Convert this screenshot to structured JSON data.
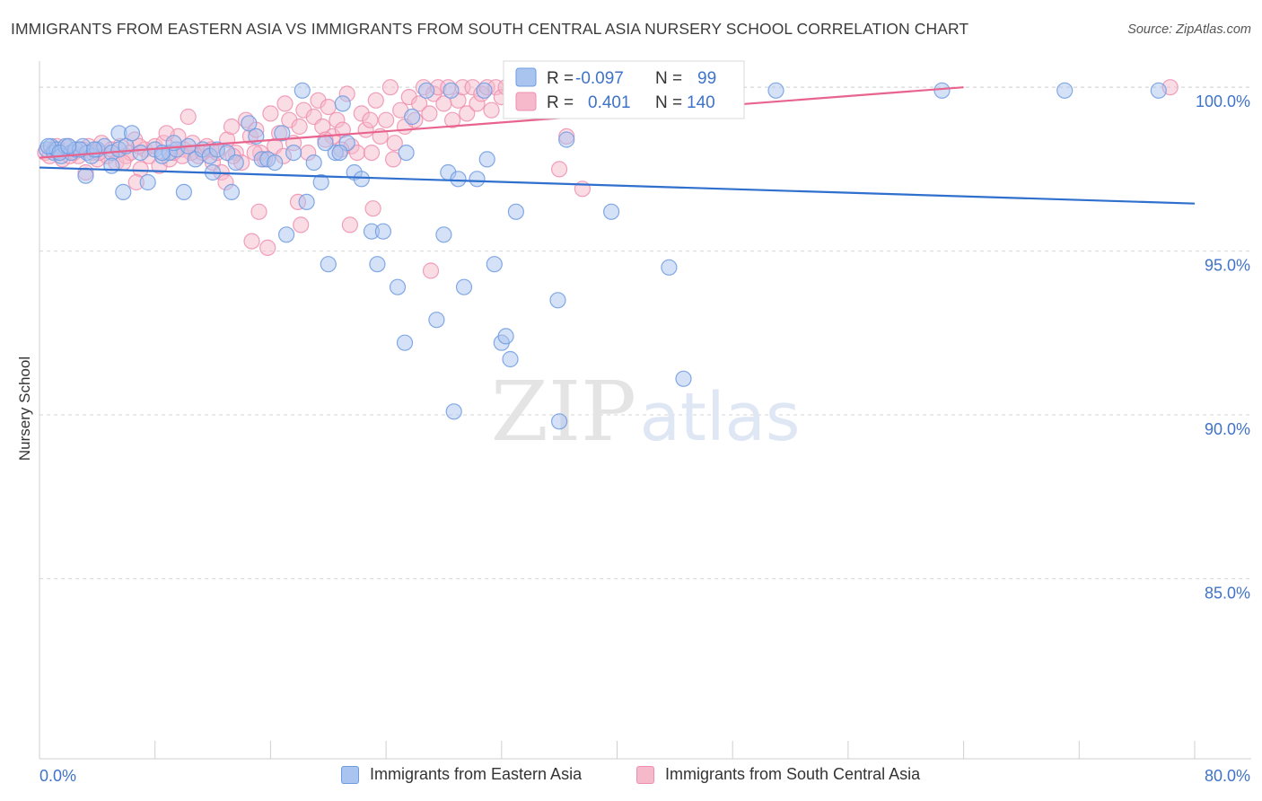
{
  "header": {
    "title": "IMMIGRANTS FROM EASTERN ASIA VS IMMIGRANTS FROM SOUTH CENTRAL ASIA NURSERY SCHOOL CORRELATION CHART",
    "source": "Source: ZipAtlas.com"
  },
  "watermark": {
    "zip": "ZIP",
    "atlas": "atlas"
  },
  "colors": {
    "blue_fill": "#a9c4ef",
    "blue_stroke": "#6f9be0",
    "blue_line": "#2f6fce",
    "pink_fill": "#f6b9cc",
    "pink_stroke": "#ee8faf",
    "pink_line": "#e8648e",
    "tick_text": "#3f73c9",
    "grid": "#d6d6d6"
  },
  "legend": {
    "rows": [
      {
        "r_label": "R =",
        "r_value": "-0.097",
        "n_label": "N =",
        "n_value": "99"
      },
      {
        "r_label": "R =",
        "r_value": "0.401",
        "n_label": "N =",
        "n_value": "140"
      }
    ]
  },
  "chart_data": {
    "type": "scatter",
    "title": "IMMIGRANTS FROM EASTERN ASIA VS IMMIGRANTS FROM SOUTH CENTRAL ASIA NURSERY SCHOOL CORRELATION CHART",
    "xlabel": "",
    "ylabel": "Nursery School",
    "xlim": [
      0,
      80
    ],
    "ylim": [
      79.5,
      100.8
    ],
    "x_tick_labels": [
      "0.0%",
      "80.0%"
    ],
    "y_ticks": [
      85,
      90,
      95,
      100
    ],
    "y_tick_labels": [
      "85.0%",
      "90.0%",
      "95.0%",
      "100.0%"
    ],
    "grid": true,
    "legend_position": "top-center",
    "series": [
      {
        "name": "Immigrants from Eastern Asia",
        "color": "#a9c4ef",
        "r": -0.097,
        "n": 99,
        "trend": {
          "x": [
            0,
            80
          ],
          "y": [
            97.55,
            96.45
          ]
        },
        "points": [
          [
            0.5,
            98.1
          ],
          [
            0.8,
            98.2
          ],
          [
            1.0,
            98.0
          ],
          [
            1.2,
            98.1
          ],
          [
            1.5,
            97.9
          ],
          [
            1.8,
            98.2
          ],
          [
            2.2,
            98.0
          ],
          [
            2.5,
            98.1
          ],
          [
            3.0,
            98.2
          ],
          [
            3.3,
            98.0
          ],
          [
            3.6,
            97.9
          ],
          [
            4.0,
            98.1
          ],
          [
            4.5,
            98.2
          ],
          [
            5.0,
            98.0
          ],
          [
            5.5,
            98.1
          ],
          [
            6.0,
            98.2
          ],
          [
            0.6,
            98.2
          ],
          [
            1.4,
            98.0
          ],
          [
            2.8,
            98.1
          ],
          [
            3.2,
            97.3
          ],
          [
            5.0,
            97.6
          ],
          [
            5.5,
            98.6
          ],
          [
            5.8,
            96.8
          ],
          [
            6.4,
            98.6
          ],
          [
            7.0,
            98.0
          ],
          [
            7.5,
            97.1
          ],
          [
            8.0,
            98.1
          ],
          [
            8.5,
            97.9
          ],
          [
            9.0,
            98.0
          ],
          [
            9.5,
            98.1
          ],
          [
            10.0,
            96.8
          ],
          [
            10.3,
            98.2
          ],
          [
            10.8,
            97.8
          ],
          [
            11.3,
            98.1
          ],
          [
            11.8,
            97.9
          ],
          [
            12.0,
            97.4
          ],
          [
            12.3,
            98.1
          ],
          [
            13.0,
            98.0
          ],
          [
            13.3,
            96.8
          ],
          [
            13.6,
            97.7
          ],
          [
            14.5,
            98.9
          ],
          [
            15.0,
            98.5
          ],
          [
            15.4,
            97.8
          ],
          [
            15.8,
            97.8
          ],
          [
            16.3,
            97.7
          ],
          [
            16.8,
            98.6
          ],
          [
            17.1,
            95.5
          ],
          [
            17.6,
            98.0
          ],
          [
            18.2,
            99.9
          ],
          [
            18.5,
            96.5
          ],
          [
            19.0,
            97.7
          ],
          [
            19.5,
            97.1
          ],
          [
            20.5,
            98.0
          ],
          [
            21.0,
            99.5
          ],
          [
            21.3,
            98.3
          ],
          [
            20.0,
            94.6
          ],
          [
            20.8,
            98.0
          ],
          [
            21.8,
            97.4
          ],
          [
            22.3,
            97.2
          ],
          [
            23.0,
            95.6
          ],
          [
            23.4,
            94.6
          ],
          [
            23.8,
            95.6
          ],
          [
            24.8,
            93.9
          ],
          [
            25.3,
            92.2
          ],
          [
            25.8,
            99.1
          ],
          [
            25.4,
            98.0
          ],
          [
            26.8,
            99.9
          ],
          [
            28.0,
            95.5
          ],
          [
            28.3,
            97.4
          ],
          [
            27.5,
            92.9
          ],
          [
            28.5,
            99.9
          ],
          [
            28.7,
            90.1
          ],
          [
            29.0,
            97.2
          ],
          [
            29.4,
            93.9
          ],
          [
            30.3,
            97.2
          ],
          [
            31.0,
            97.8
          ],
          [
            30.8,
            99.9
          ],
          [
            31.5,
            94.6
          ],
          [
            32.0,
            92.2
          ],
          [
            32.3,
            92.4
          ],
          [
            32.6,
            91.7
          ],
          [
            33.0,
            96.2
          ],
          [
            34.6,
            99.9
          ],
          [
            35.9,
            93.5
          ],
          [
            36.0,
            89.8
          ],
          [
            36.5,
            98.4
          ],
          [
            39.6,
            96.2
          ],
          [
            40.8,
            99.9
          ],
          [
            43.6,
            94.5
          ],
          [
            44.6,
            91.1
          ],
          [
            51.0,
            99.9
          ],
          [
            62.5,
            99.9
          ],
          [
            71.0,
            99.9
          ],
          [
            77.5,
            99.9
          ],
          [
            19.8,
            98.3
          ],
          [
            9.3,
            98.3
          ],
          [
            8.5,
            98.0
          ],
          [
            3.8,
            98.1
          ],
          [
            2.0,
            98.2
          ]
        ]
      },
      {
        "name": "Immigrants from South Central Asia",
        "color": "#f6b9cc",
        "r": 0.401,
        "n": 140,
        "trend": {
          "x": [
            0,
            64
          ],
          "y": [
            97.85,
            100.0
          ]
        },
        "points": [
          [
            0.4,
            98.0
          ],
          [
            0.7,
            97.9
          ],
          [
            1.0,
            98.1
          ],
          [
            1.3,
            98.0
          ],
          [
            1.6,
            97.8
          ],
          [
            2.0,
            98.2
          ],
          [
            2.4,
            98.0
          ],
          [
            2.7,
            97.9
          ],
          [
            3.0,
            98.1
          ],
          [
            3.4,
            98.2
          ],
          [
            3.7,
            98.0
          ],
          [
            4.0,
            97.8
          ],
          [
            4.3,
            98.3
          ],
          [
            4.7,
            97.9
          ],
          [
            5.0,
            98.1
          ],
          [
            5.3,
            97.7
          ],
          [
            5.6,
            98.2
          ],
          [
            6.0,
            97.9
          ],
          [
            6.3,
            98.0
          ],
          [
            6.6,
            98.4
          ],
          [
            7.0,
            97.5
          ],
          [
            7.3,
            98.1
          ],
          [
            7.6,
            97.9
          ],
          [
            8.0,
            98.2
          ],
          [
            8.3,
            97.6
          ],
          [
            8.6,
            98.3
          ],
          [
            9.0,
            97.8
          ],
          [
            9.3,
            98.0
          ],
          [
            9.6,
            98.5
          ],
          [
            10.0,
            98.1
          ],
          [
            10.3,
            99.1
          ],
          [
            10.6,
            98.3
          ],
          [
            11.0,
            97.9
          ],
          [
            11.3,
            98.0
          ],
          [
            11.6,
            98.2
          ],
          [
            12.0,
            97.7
          ],
          [
            12.3,
            98.0
          ],
          [
            12.6,
            97.4
          ],
          [
            13.0,
            98.4
          ],
          [
            13.3,
            98.8
          ],
          [
            13.6,
            98.0
          ],
          [
            14.0,
            97.7
          ],
          [
            14.3,
            99.0
          ],
          [
            14.6,
            98.5
          ],
          [
            15.0,
            98.7
          ],
          [
            15.3,
            98.0
          ],
          [
            15.6,
            97.8
          ],
          [
            16.0,
            99.2
          ],
          [
            16.3,
            98.2
          ],
          [
            16.6,
            98.6
          ],
          [
            17.0,
            99.5
          ],
          [
            17.3,
            99.0
          ],
          [
            17.6,
            98.3
          ],
          [
            18.0,
            98.8
          ],
          [
            18.3,
            99.3
          ],
          [
            18.6,
            98.0
          ],
          [
            19.0,
            99.1
          ],
          [
            19.3,
            99.6
          ],
          [
            19.6,
            98.8
          ],
          [
            20.0,
            99.4
          ],
          [
            20.3,
            98.5
          ],
          [
            20.6,
            99.0
          ],
          [
            21.0,
            98.7
          ],
          [
            21.3,
            99.8
          ],
          [
            21.6,
            98.2
          ],
          [
            22.0,
            98.0
          ],
          [
            22.3,
            99.2
          ],
          [
            22.6,
            98.7
          ],
          [
            23.0,
            98.0
          ],
          [
            23.3,
            99.6
          ],
          [
            23.6,
            98.5
          ],
          [
            24.0,
            99.0
          ],
          [
            24.3,
            100.0
          ],
          [
            24.6,
            98.3
          ],
          [
            25.0,
            99.3
          ],
          [
            25.3,
            98.8
          ],
          [
            25.6,
            99.7
          ],
          [
            26.0,
            99.0
          ],
          [
            26.3,
            99.5
          ],
          [
            26.6,
            100.0
          ],
          [
            27.0,
            99.2
          ],
          [
            27.3,
            99.8
          ],
          [
            27.6,
            100.0
          ],
          [
            28.0,
            99.5
          ],
          [
            28.3,
            100.0
          ],
          [
            28.6,
            99.0
          ],
          [
            29.0,
            99.6
          ],
          [
            29.3,
            100.0
          ],
          [
            29.6,
            99.2
          ],
          [
            30.0,
            100.0
          ],
          [
            30.3,
            99.5
          ],
          [
            30.6,
            99.8
          ],
          [
            31.0,
            100.0
          ],
          [
            31.3,
            99.3
          ],
          [
            31.6,
            100.0
          ],
          [
            32.0,
            99.7
          ],
          [
            32.3,
            100.0
          ],
          [
            33.0,
            99.5
          ],
          [
            33.3,
            100.0
          ],
          [
            34.0,
            99.8
          ],
          [
            35.0,
            100.0
          ],
          [
            35.5,
            99.6
          ],
          [
            36.0,
            100.0
          ],
          [
            36.5,
            98.5
          ],
          [
            37.0,
            100.0
          ],
          [
            38.0,
            99.8
          ],
          [
            40.0,
            100.0
          ],
          [
            41.0,
            99.9
          ],
          [
            42.0,
            100.0
          ],
          [
            44.0,
            99.9
          ],
          [
            3.2,
            97.4
          ],
          [
            5.8,
            97.7
          ],
          [
            6.7,
            97.1
          ],
          [
            8.8,
            98.6
          ],
          [
            12.9,
            97.1
          ],
          [
            14.7,
            95.3
          ],
          [
            15.2,
            96.2
          ],
          [
            15.8,
            95.1
          ],
          [
            17.9,
            96.5
          ],
          [
            18.1,
            95.8
          ],
          [
            21.5,
            95.8
          ],
          [
            23.1,
            96.3
          ],
          [
            24.5,
            97.8
          ],
          [
            27.1,
            94.4
          ],
          [
            36.0,
            97.5
          ],
          [
            37.6,
            96.9
          ],
          [
            10.5,
            98.0
          ],
          [
            13.4,
            97.9
          ],
          [
            19.8,
            98.4
          ],
          [
            22.9,
            99.0
          ],
          [
            1.2,
            98.2
          ],
          [
            2.1,
            97.9
          ],
          [
            4.1,
            98.0
          ],
          [
            6.9,
            98.2
          ],
          [
            9.9,
            97.9
          ],
          [
            11.9,
            98.1
          ],
          [
            14.9,
            98.0
          ],
          [
            16.9,
            97.9
          ],
          [
            20.9,
            98.1
          ],
          [
            78.3,
            100.0
          ]
        ]
      }
    ]
  },
  "bottom_legend": {
    "items": [
      {
        "label": "Immigrants from Eastern Asia"
      },
      {
        "label": "Immigrants from South Central Asia"
      }
    ]
  }
}
